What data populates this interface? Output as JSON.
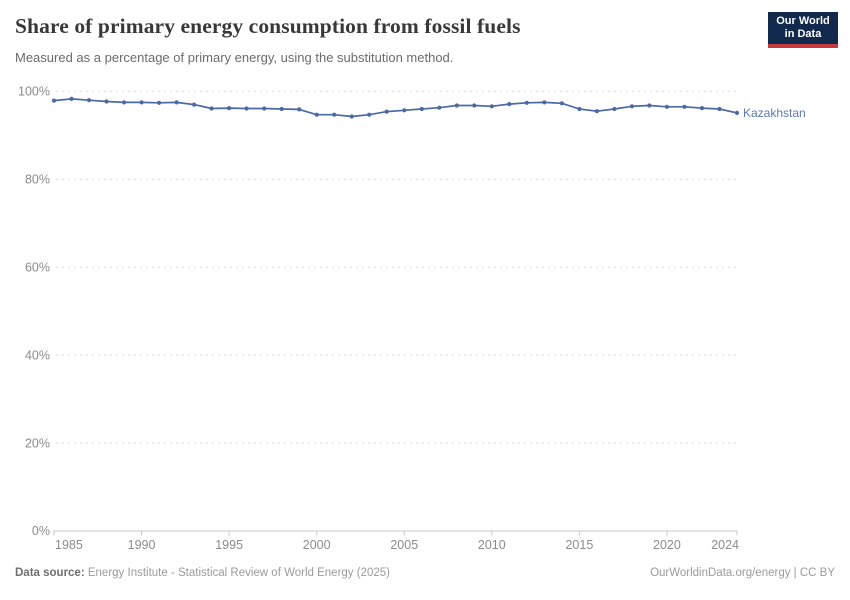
{
  "header": {
    "title": "Share of primary energy consumption from fossil fuels",
    "subtitle": "Measured as a percentage of primary energy, using the substitution method.",
    "logo": {
      "line1": "Our World",
      "line2": "in Data"
    }
  },
  "chart_data": {
    "type": "line",
    "title": "Share of primary energy consumption from fossil fuels",
    "xlabel": "",
    "ylabel": "",
    "xlim": [
      1985,
      2024
    ],
    "ylim": [
      0,
      100
    ],
    "grid": "horizontal-dashed",
    "legend_position": "line-end-label",
    "yticks": [
      0,
      20,
      40,
      60,
      80,
      100
    ],
    "ytick_suffix": "%",
    "xticks": [
      1985,
      1990,
      1995,
      2000,
      2005,
      2010,
      2015,
      2020,
      2024
    ],
    "x": [
      1985,
      1986,
      1987,
      1988,
      1989,
      1990,
      1991,
      1992,
      1993,
      1994,
      1995,
      1996,
      1997,
      1998,
      1999,
      2000,
      2001,
      2002,
      2003,
      2004,
      2005,
      2006,
      2007,
      2008,
      2009,
      2010,
      2011,
      2012,
      2013,
      2014,
      2015,
      2016,
      2017,
      2018,
      2019,
      2020,
      2021,
      2022,
      2023,
      2024
    ],
    "series": [
      {
        "name": "Kazakhstan",
        "color": "#4a69a6",
        "label_color": "#5b79b5",
        "values": [
          97.9,
          98.3,
          98.0,
          97.7,
          97.5,
          97.5,
          97.4,
          97.5,
          97.0,
          96.1,
          96.2,
          96.1,
          96.1,
          96.0,
          95.9,
          94.7,
          94.7,
          94.3,
          94.7,
          95.4,
          95.7,
          96.0,
          96.3,
          96.8,
          96.8,
          96.6,
          97.1,
          97.4,
          97.5,
          97.3,
          96.0,
          95.5,
          96.0,
          96.6,
          96.8,
          96.5,
          96.5,
          96.2,
          96.0,
          95.1
        ]
      }
    ]
  },
  "footer": {
    "datasource_label": "Data source:",
    "datasource_text": " Energy Institute - Statistical Review of World Energy (2025)",
    "credit": "OurWorldinData.org/energy | CC BY"
  },
  "colors": {
    "line": "#4a69a6",
    "series_label": "#5b79b5",
    "logo_bg": "#12294e",
    "logo_underline": "#c7383f",
    "gridline": "#dedede",
    "axis": "#cacaca",
    "tick_text": "#8b8b8b",
    "title_text": "#383838",
    "subtitle_text": "#6b6b6b"
  }
}
